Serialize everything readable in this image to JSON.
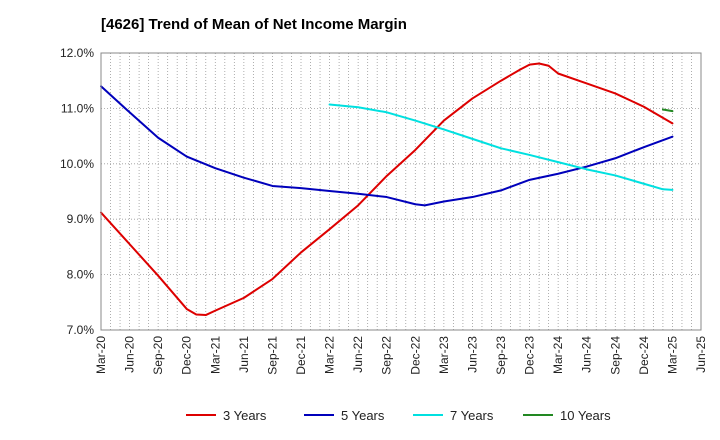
{
  "chart_data": {
    "type": "line",
    "title": "[4626]  Trend of Mean of Net Income Margin",
    "xlabel": "",
    "ylabel": "",
    "x_tick_labels": [
      "Mar-20",
      "Jun-20",
      "Sep-20",
      "Dec-20",
      "Mar-21",
      "Jun-21",
      "Sep-21",
      "Dec-21",
      "Mar-22",
      "Jun-22",
      "Sep-22",
      "Dec-22",
      "Mar-23",
      "Jun-23",
      "Sep-23",
      "Dec-23",
      "Mar-24",
      "Jun-24",
      "Sep-24",
      "Dec-24",
      "Mar-25",
      "Jun-25"
    ],
    "y_tick_labels": [
      "7.0%",
      "8.0%",
      "9.0%",
      "10.0%",
      "11.0%",
      "12.0%"
    ],
    "ylim": [
      7.0,
      12.0
    ],
    "y_ticks": [
      7.0,
      8.0,
      9.0,
      10.0,
      11.0,
      12.0
    ],
    "grid": "vertical dotted gridlines per month; horizontal dotted gridlines at y ticks",
    "legend_position": "bottom",
    "series": [
      {
        "name": "3 Years",
        "color": "#dd0000",
        "x": [
          "Mar-20",
          "Jun-20",
          "Sep-20",
          "Dec-20",
          "Jan-21",
          "Feb-21",
          "Mar-21",
          "Jun-21",
          "Sep-21",
          "Dec-21",
          "Mar-22",
          "Jun-22",
          "Sep-22",
          "Dec-22",
          "Mar-23",
          "Jun-23",
          "Sep-23",
          "Nov-23",
          "Dec-23",
          "Jan-24",
          "Feb-24",
          "Mar-24",
          "Jun-24",
          "Sep-24",
          "Dec-24",
          "Mar-25"
        ],
        "values": [
          9.12,
          8.55,
          7.98,
          7.38,
          7.28,
          7.27,
          7.35,
          7.58,
          7.92,
          8.4,
          8.82,
          9.25,
          9.78,
          10.25,
          10.78,
          11.18,
          11.5,
          11.7,
          11.79,
          11.81,
          11.77,
          11.63,
          11.45,
          11.27,
          11.03,
          10.73
        ]
      },
      {
        "name": "5 Years",
        "color": "#0000bb",
        "x": [
          "Mar-20",
          "Jun-20",
          "Sep-20",
          "Dec-20",
          "Mar-21",
          "Jun-21",
          "Sep-21",
          "Dec-21",
          "Mar-22",
          "Jun-22",
          "Sep-22",
          "Dec-22",
          "Jan-23",
          "Mar-23",
          "Jun-23",
          "Sep-23",
          "Dec-23",
          "Mar-24",
          "Jun-24",
          "Sep-24",
          "Dec-24",
          "Mar-25"
        ],
        "values": [
          11.4,
          10.93,
          10.47,
          10.13,
          9.92,
          9.75,
          9.6,
          9.56,
          9.51,
          9.46,
          9.4,
          9.27,
          9.25,
          9.32,
          9.4,
          9.52,
          9.71,
          9.82,
          9.95,
          10.1,
          10.3,
          10.49
        ]
      },
      {
        "name": "7 Years",
        "color": "#00e0e0",
        "x": [
          "Mar-22",
          "Jun-22",
          "Sep-22",
          "Dec-22",
          "Mar-23",
          "Jun-23",
          "Sep-23",
          "Dec-23",
          "Mar-24",
          "Jun-24",
          "Sep-24",
          "Dec-24",
          "Feb-25",
          "Mar-25"
        ],
        "values": [
          11.07,
          11.02,
          10.93,
          10.78,
          10.62,
          10.45,
          10.28,
          10.16,
          10.03,
          9.9,
          9.79,
          9.64,
          9.54,
          9.53
        ]
      },
      {
        "name": "10 Years",
        "color": "#228822",
        "x": [
          "Feb-25",
          "Mar-25"
        ],
        "values": [
          10.98,
          10.95
        ]
      }
    ]
  }
}
